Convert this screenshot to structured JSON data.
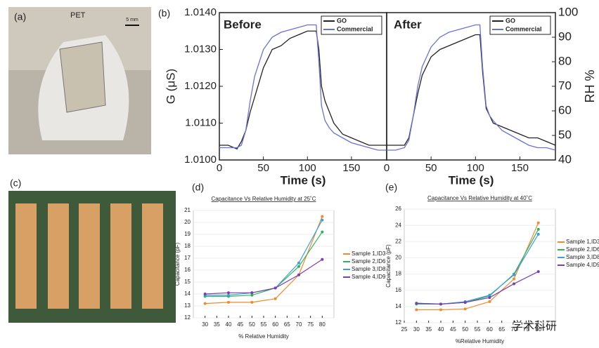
{
  "panels": {
    "a": {
      "label": "(a)",
      "text": "PET",
      "scale": "5 mm"
    },
    "c": {
      "label": "(c)"
    },
    "b": {
      "label": "(b)"
    },
    "d": {
      "label": "(d)"
    },
    "e": {
      "label": "(e)"
    },
    "watermark": "学术科研"
  },
  "chart_data": [
    {
      "type": "line",
      "annotation": "Before",
      "xlabel": "Time (s)",
      "ylabel": "G (μS)",
      "x": [
        0,
        10,
        20,
        25,
        30,
        35,
        40,
        50,
        60,
        70,
        80,
        90,
        100,
        110,
        113,
        116,
        120,
        125,
        130,
        140,
        150,
        160,
        170,
        180,
        190
      ],
      "series": [
        {
          "name": "GO",
          "color": "#222222",
          "values": [
            1.0104,
            1.0104,
            1.0103,
            1.0105,
            1.0108,
            1.0113,
            1.0117,
            1.0125,
            1.013,
            1.0131,
            1.0133,
            1.0134,
            1.0135,
            1.0135,
            1.013,
            1.012,
            1.0116,
            1.0113,
            1.011,
            1.0107,
            1.0106,
            1.0105,
            1.0104,
            1.0104,
            1.0104
          ]
        },
        {
          "name": "Commercial",
          "color": "#6a72d8",
          "axis": "y2",
          "values": [
            45,
            45,
            45,
            46,
            52,
            64,
            74,
            85,
            90,
            92,
            93,
            94,
            95,
            95,
            80,
            62,
            56,
            53,
            51,
            49,
            47,
            46,
            45,
            44,
            44
          ]
        }
      ],
      "xlim": [
        0,
        190
      ],
      "xticks": [
        0,
        50,
        100,
        150
      ],
      "ylim": [
        1.01,
        1.014
      ],
      "yticks": [
        {
          "value": 1.01,
          "label": "1.0100"
        },
        {
          "value": 1.011,
          "label": "1.0110"
        },
        {
          "value": 1.012,
          "label": "1.0120"
        },
        {
          "value": 1.013,
          "label": "1.0130"
        },
        {
          "value": 1.014,
          "label": "1.0140"
        }
      ],
      "y2lim": [
        40,
        100
      ]
    },
    {
      "type": "line",
      "annotation": "After",
      "xlabel": "Time (s)",
      "y2label": "RH %",
      "x": [
        0,
        10,
        20,
        25,
        30,
        35,
        40,
        50,
        60,
        70,
        80,
        90,
        100,
        105,
        108,
        112,
        116,
        120,
        130,
        140,
        150,
        160,
        170,
        180,
        190
      ],
      "series": [
        {
          "name": "GO",
          "color": "#222222",
          "values": [
            1.0104,
            1.0104,
            1.0104,
            1.0106,
            1.0112,
            1.0118,
            1.0123,
            1.0128,
            1.013,
            1.0131,
            1.0132,
            1.0133,
            1.0134,
            1.0134,
            1.0124,
            1.0114,
            1.0112,
            1.011,
            1.0109,
            1.0108,
            1.0107,
            1.0106,
            1.0106,
            1.0105,
            1.0104
          ]
        },
        {
          "name": "Commercial",
          "color": "#6a72d8",
          "axis": "y2",
          "values": [
            44,
            44,
            45,
            48,
            58,
            70,
            78,
            86,
            90,
            92,
            93,
            94,
            95,
            95,
            78,
            62,
            58,
            56,
            52,
            50,
            48,
            46,
            45,
            45,
            44
          ]
        }
      ],
      "xlim": [
        0,
        190
      ],
      "xticks": [
        0,
        50,
        100,
        150
      ],
      "ylim": [
        1.01,
        1.014
      ],
      "y2lim": [
        40,
        100
      ],
      "y2ticks": [
        40,
        50,
        60,
        70,
        80,
        90,
        100
      ]
    },
    {
      "type": "line",
      "title": "Capacitance Vs  Relative Humidity at  25˚C",
      "xlabel": "% Relative Humidity",
      "ylabel": "Capacitance (pF)",
      "x": [
        30,
        40,
        50,
        60,
        70,
        80
      ],
      "series": [
        {
          "name": "Sample 1,ID3",
          "color": "#f08a2c",
          "values": [
            13.2,
            13.3,
            13.3,
            13.6,
            15.6,
            20.5
          ]
        },
        {
          "name": "Sample 2,ID6",
          "color": "#2fb35a",
          "values": [
            13.8,
            13.8,
            13.9,
            14.5,
            16.3,
            19.2
          ]
        },
        {
          "name": "Sample 3,ID8",
          "color": "#3c9fd8",
          "values": [
            13.9,
            13.9,
            14.1,
            14.5,
            16.6,
            20.2
          ]
        },
        {
          "name": "Sample 4,ID9",
          "color": "#7d3fb0",
          "values": [
            14.0,
            14.1,
            14.1,
            14.5,
            15.6,
            16.9
          ]
        }
      ],
      "xlim": [
        25,
        85
      ],
      "xticks": [
        30,
        35,
        40,
        45,
        50,
        55,
        60,
        65,
        70,
        75,
        80
      ],
      "ylim": [
        12,
        21
      ],
      "yticks": [
        12,
        13,
        14,
        15,
        16,
        17,
        18,
        19,
        20,
        21
      ],
      "markers": true
    },
    {
      "type": "line",
      "title": "Capacitance Vs Relative Humidity at 40˚C",
      "xlabel": "%Relative Humidity",
      "ylabel": "Capacitance (pF)",
      "x": [
        30,
        40,
        50,
        60,
        70,
        80
      ],
      "series": [
        {
          "name": "Sample 1,ID3",
          "color": "#f08a2c",
          "values": [
            13.6,
            13.6,
            13.7,
            14.6,
            17.4,
            24.3
          ]
        },
        {
          "name": "Sample 2,ID6",
          "color": "#2fb35a",
          "values": [
            14.3,
            14.3,
            14.5,
            15.3,
            18.0,
            23.5
          ]
        },
        {
          "name": "Sample 3,ID8",
          "color": "#3c9fd8",
          "values": [
            14.4,
            14.3,
            14.6,
            15.4,
            17.9,
            22.9
          ]
        },
        {
          "name": "Sample 4,ID9",
          "color": "#7d3fb0",
          "values": [
            14.4,
            14.3,
            14.5,
            15.1,
            16.8,
            18.3
          ]
        }
      ],
      "xlim": [
        25,
        87
      ],
      "xticks": [
        25,
        30,
        35,
        40,
        45,
        50,
        55,
        60,
        65,
        70,
        75,
        80
      ],
      "ylim": [
        12,
        26
      ],
      "yticks": [
        12,
        14,
        16,
        18,
        20,
        22,
        24,
        26
      ],
      "markers": true
    }
  ]
}
